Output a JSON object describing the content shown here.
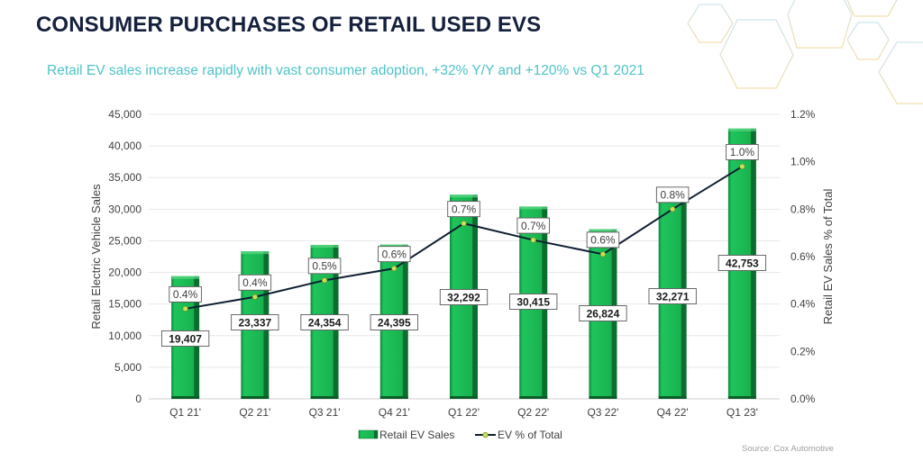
{
  "header": {
    "title": "CONSUMER PURCHASES OF RETAIL USED EVS",
    "subtitle": "Retail EV sales increase rapidly with vast consumer adoption, +32% Y/Y and +120% vs Q1 2021"
  },
  "footer": {
    "source": "Source: Cox Automotive"
  },
  "colors": {
    "title": "#14213d",
    "subtitle": "#4fc3c8",
    "bar": "#1db954",
    "bar_dark": "#0b7a34",
    "line": "#0f1e33",
    "marker": "#c8e05a"
  },
  "chart_data": {
    "type": "bar",
    "combo_with": "line",
    "title": "",
    "categories": [
      "Q1 21'",
      "Q2 21'",
      "Q3 21'",
      "Q4 21'",
      "Q1 22'",
      "Q2 22'",
      "Q3 22'",
      "Q4 22'",
      "Q1 23'"
    ],
    "series": [
      {
        "name": "Retail EV Sales",
        "type": "bar",
        "axis": "left",
        "values": [
          19407,
          23337,
          24354,
          24395,
          32292,
          30415,
          26824,
          32271,
          42753
        ],
        "labels": [
          "19,407",
          "23,337",
          "24,354",
          "24,395",
          "32,292",
          "30,415",
          "26,824",
          "32,271",
          "42,753"
        ]
      },
      {
        "name": "EV % of Total",
        "type": "line",
        "axis": "right",
        "values": [
          0.38,
          0.43,
          0.5,
          0.55,
          0.74,
          0.67,
          0.61,
          0.8,
          0.98
        ],
        "labels": [
          "0.4%",
          "0.4%",
          "0.5%",
          "0.6%",
          "0.7%",
          "0.7%",
          "0.6%",
          "0.8%",
          "1.0%"
        ]
      }
    ],
    "y_left": {
      "label": "Retail Electric Vehicle Sales",
      "lim": [
        0,
        45000
      ],
      "ticks": [
        "0",
        "5,000",
        "10,000",
        "15,000",
        "20,000",
        "25,000",
        "30,000",
        "35,000",
        "40,000",
        "45,000"
      ]
    },
    "y_right": {
      "label": "Retail EV Sales % of Total",
      "lim": [
        0,
        1.2
      ],
      "ticks": [
        "0.0%",
        "0.2%",
        "0.4%",
        "0.6%",
        "0.8%",
        "1.0%",
        "1.2%"
      ]
    },
    "xlabel": "",
    "grid": true,
    "legend": {
      "position": "bottom",
      "entries": [
        "Retail EV Sales",
        "EV % of Total"
      ]
    }
  }
}
